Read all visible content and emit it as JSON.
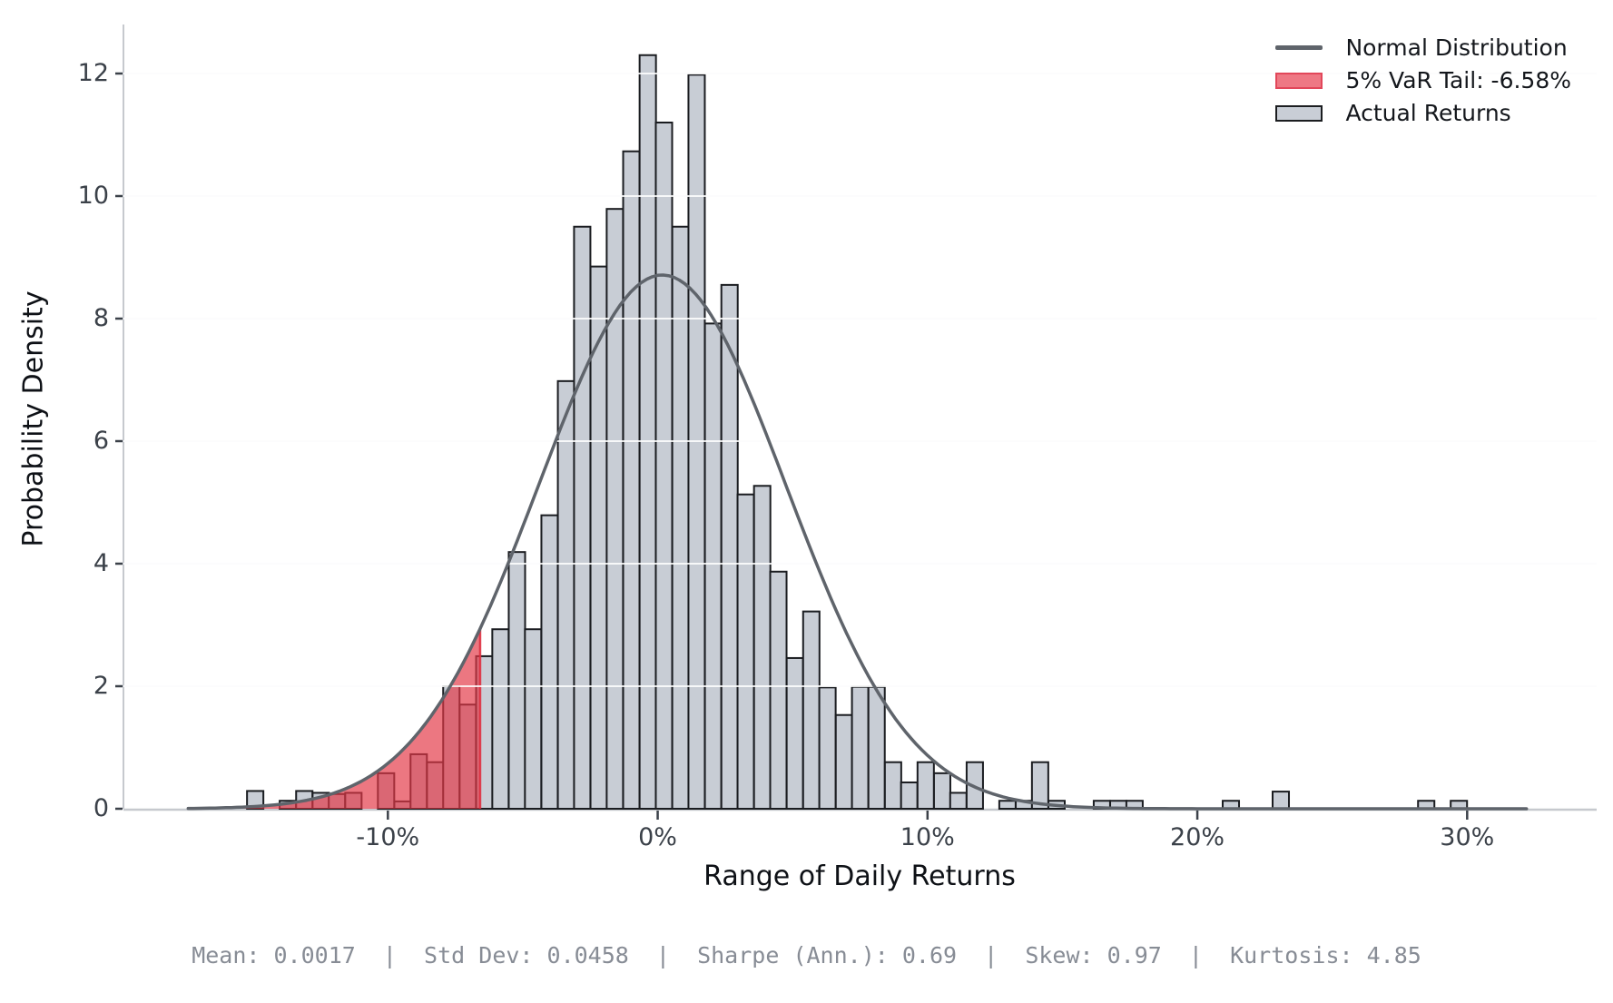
{
  "figure": {
    "background": "#ffffff",
    "x_axis_label": "Range of Daily Returns",
    "y_axis_label": "Probability Density",
    "stats_line": "Mean: 0.0017  |  Std Dev: 0.0458  |  Sharpe (Ann.): 0.69  |  Skew: 0.97  |  Kurtosis: 4.85"
  },
  "legend": {
    "items": [
      {
        "label": "Normal Distribution",
        "swatch": "line",
        "fill": "#5f646b",
        "edge": "#5f646b"
      },
      {
        "label": "5% VaR Tail: -6.58%",
        "swatch": "patch",
        "fill": "#ee7884",
        "edge": "#e2475a"
      },
      {
        "label": "Actual Returns",
        "swatch": "patch",
        "fill": "#c9ced6",
        "edge": "#1b1d20"
      }
    ]
  },
  "chart_data": {
    "type": "bar",
    "subtype": "histogram-of-daily-returns-with-normal-density-overlay",
    "title": "",
    "xlabel": "Range of Daily Returns",
    "ylabel": "Probability Density",
    "x_unit": "percent",
    "y_unit": "probability density",
    "xlim": [
      -19.8,
      34.8
    ],
    "ylim": [
      0,
      12.8
    ],
    "grid": "horizontal",
    "legend_position": "upper right",
    "x_ticks": [
      {
        "v": -10,
        "label": "-10%"
      },
      {
        "v": 0,
        "label": "0%"
      },
      {
        "v": 10,
        "label": "10%"
      },
      {
        "v": 20,
        "label": "20%"
      },
      {
        "v": 30,
        "label": "30%"
      }
    ],
    "y_ticks": [
      0,
      2,
      4,
      6,
      8,
      10,
      12
    ],
    "bin_width_pct": 0.606,
    "bars": [
      {
        "x": -15.22,
        "h": 0.29
      },
      {
        "x": -14.01,
        "h": 0.13
      },
      {
        "x": -13.4,
        "h": 0.29
      },
      {
        "x": -12.79,
        "h": 0.26
      },
      {
        "x": -12.19,
        "h": 0.24
      },
      {
        "x": -11.58,
        "h": 0.26
      },
      {
        "x": -10.37,
        "h": 0.58
      },
      {
        "x": -9.76,
        "h": 0.12
      },
      {
        "x": -9.16,
        "h": 0.89
      },
      {
        "x": -8.55,
        "h": 0.76
      },
      {
        "x": -7.95,
        "h": 2.0
      },
      {
        "x": -7.34,
        "h": 1.7
      },
      {
        "x": -6.73,
        "h": 2.49
      },
      {
        "x": -6.13,
        "h": 2.93
      },
      {
        "x": -5.52,
        "h": 4.19
      },
      {
        "x": -4.92,
        "h": 2.93
      },
      {
        "x": -4.31,
        "h": 4.79
      },
      {
        "x": -3.7,
        "h": 6.98
      },
      {
        "x": -3.1,
        "h": 9.5
      },
      {
        "x": -2.49,
        "h": 8.85
      },
      {
        "x": -1.89,
        "h": 9.79
      },
      {
        "x": -1.28,
        "h": 10.73
      },
      {
        "x": -0.67,
        "h": 12.3
      },
      {
        "x": -0.07,
        "h": 11.2
      },
      {
        "x": 0.54,
        "h": 9.5
      },
      {
        "x": 1.14,
        "h": 11.98
      },
      {
        "x": 1.75,
        "h": 7.92
      },
      {
        "x": 2.36,
        "h": 8.55
      },
      {
        "x": 2.96,
        "h": 5.13
      },
      {
        "x": 3.57,
        "h": 5.27
      },
      {
        "x": 4.17,
        "h": 3.87
      },
      {
        "x": 4.78,
        "h": 2.46
      },
      {
        "x": 5.39,
        "h": 3.22
      },
      {
        "x": 5.99,
        "h": 1.98
      },
      {
        "x": 6.6,
        "h": 1.53
      },
      {
        "x": 7.2,
        "h": 1.99
      },
      {
        "x": 7.81,
        "h": 1.99
      },
      {
        "x": 8.42,
        "h": 0.76
      },
      {
        "x": 9.02,
        "h": 0.43
      },
      {
        "x": 9.63,
        "h": 0.76
      },
      {
        "x": 10.24,
        "h": 0.58
      },
      {
        "x": 10.84,
        "h": 0.26
      },
      {
        "x": 11.45,
        "h": 0.76
      },
      {
        "x": 12.66,
        "h": 0.13
      },
      {
        "x": 13.27,
        "h": 0.13
      },
      {
        "x": 13.87,
        "h": 0.76
      },
      {
        "x": 14.48,
        "h": 0.13
      },
      {
        "x": 16.16,
        "h": 0.13
      },
      {
        "x": 16.77,
        "h": 0.13
      },
      {
        "x": 17.37,
        "h": 0.13
      },
      {
        "x": 20.94,
        "h": 0.13
      },
      {
        "x": 22.79,
        "h": 0.28
      },
      {
        "x": 28.18,
        "h": 0.13
      },
      {
        "x": 29.39,
        "h": 0.13
      }
    ],
    "normal_curve": {
      "name": "Normal Distribution",
      "mean_pct": 0.17,
      "std_pct": 4.58,
      "peak_density": 8.712,
      "x_range": [
        -17.4,
        32.3
      ]
    },
    "var_tail": {
      "name": "5% VaR Tail",
      "cutoff_pct": -6.58,
      "label": "5% VaR Tail: -6.58%"
    },
    "stats": {
      "mean": "0.0017",
      "std_dev": "0.0458",
      "sharpe_ann": "0.69",
      "skew": "0.97",
      "kurtosis": "4.85"
    }
  },
  "colors": {
    "bar_fill": "#c8cdd5",
    "bar_edge": "#1a1c20",
    "var_area_rgba": "rgba(227,54,70,0.68)",
    "var_edge_line": "rgba(222,48,64,0.9)",
    "curve": "#5f646b",
    "grid_under": "#ececee",
    "grid_over": "rgba(255,255,255,0.85)",
    "spine": "#c6c9ce",
    "tick_mark": "#3b4149",
    "tick_text": "#3b4149",
    "axis_label_text": "#0e1116",
    "stats_text": "#878c95"
  }
}
